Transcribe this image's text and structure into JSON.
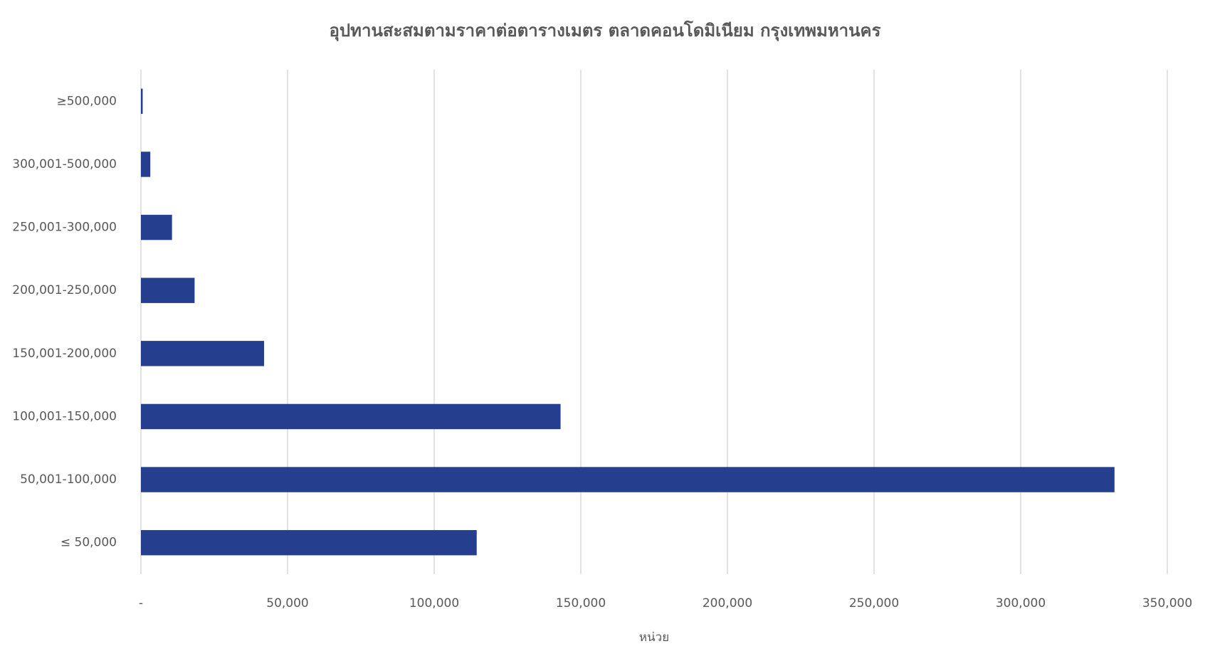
{
  "chart_data": {
    "type": "hbar",
    "title": "อุปทานสะสมตามราคาต่อตารางเมตร ตลาดคอนโดมิเนียม กรุงเทพมหานคร",
    "x_label": "หน่วย",
    "categories": [
      "≥500,000",
      "300,001-500,000",
      "250,001-300,000",
      "200,001-250,000",
      "150,001-200,000",
      "100,001-150,000",
      "50,001-100,000",
      "≤ 50,000"
    ],
    "values": [
      600,
      3200,
      10600,
      18300,
      42000,
      143100,
      332000,
      114500
    ],
    "color": "#253f8e",
    "xlim": [
      0,
      350000
    ],
    "xticks": [
      {
        "value": 0,
        "label": "-"
      },
      {
        "value": 50000,
        "label": "50,000"
      },
      {
        "value": 100000,
        "label": "100,000"
      },
      {
        "value": 150000,
        "label": "150,000"
      },
      {
        "value": 200000,
        "label": "200,000"
      },
      {
        "value": 250000,
        "label": "250,000"
      },
      {
        "value": 300000,
        "label": "300,000"
      },
      {
        "value": 350000,
        "label": "350,000"
      }
    ],
    "grid": true
  }
}
